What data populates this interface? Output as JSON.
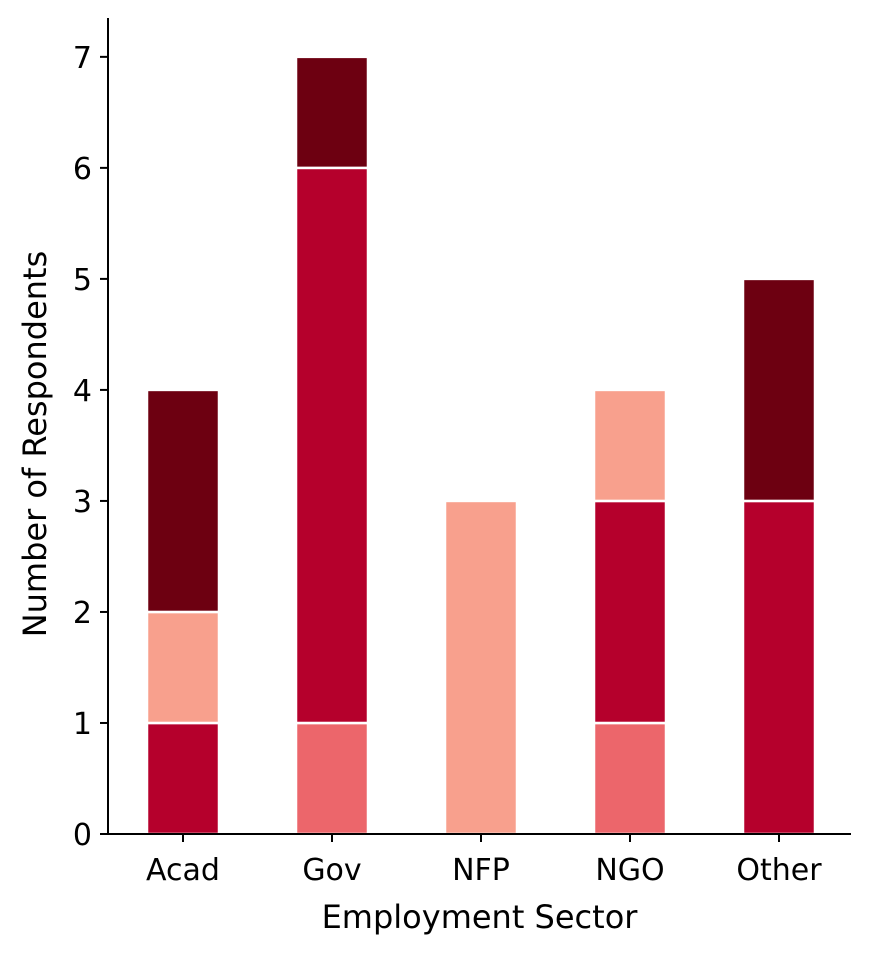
{
  "chart_data": {
    "type": "bar",
    "stacked": true,
    "title": "",
    "xlabel": "Employment Sector",
    "ylabel": "Number of Respondents",
    "categories": [
      "Acad",
      "Gov",
      "NFP",
      "NGO",
      "Other"
    ],
    "ylim": [
      0,
      7.35
    ],
    "yticks": [
      0,
      1,
      2,
      3,
      4,
      5,
      6,
      7
    ],
    "grid": false,
    "legend": "none",
    "segments": [
      {
        "category": "Acad",
        "start": 0,
        "end": 1,
        "color": "#b5002c"
      },
      {
        "category": "Acad",
        "start": 1,
        "end": 2,
        "color": "#f8a08d"
      },
      {
        "category": "Acad",
        "start": 2,
        "end": 4,
        "color": "#6d0011"
      },
      {
        "category": "Gov",
        "start": 0,
        "end": 1,
        "color": "#ec666b"
      },
      {
        "category": "Gov",
        "start": 1,
        "end": 6,
        "color": "#b5002c"
      },
      {
        "category": "Gov",
        "start": 6,
        "end": 7,
        "color": "#6d0011"
      },
      {
        "category": "NFP",
        "start": 0,
        "end": 3,
        "color": "#f8a08d"
      },
      {
        "category": "NGO",
        "start": 0,
        "end": 1,
        "color": "#ec666b"
      },
      {
        "category": "NGO",
        "start": 1,
        "end": 3,
        "color": "#b5002c"
      },
      {
        "category": "NGO",
        "start": 3,
        "end": 4,
        "color": "#f8a08d"
      },
      {
        "category": "Other",
        "start": 0,
        "end": 3,
        "color": "#b5002c"
      },
      {
        "category": "Other",
        "start": 3,
        "end": 5,
        "color": "#6d0011"
      }
    ]
  }
}
